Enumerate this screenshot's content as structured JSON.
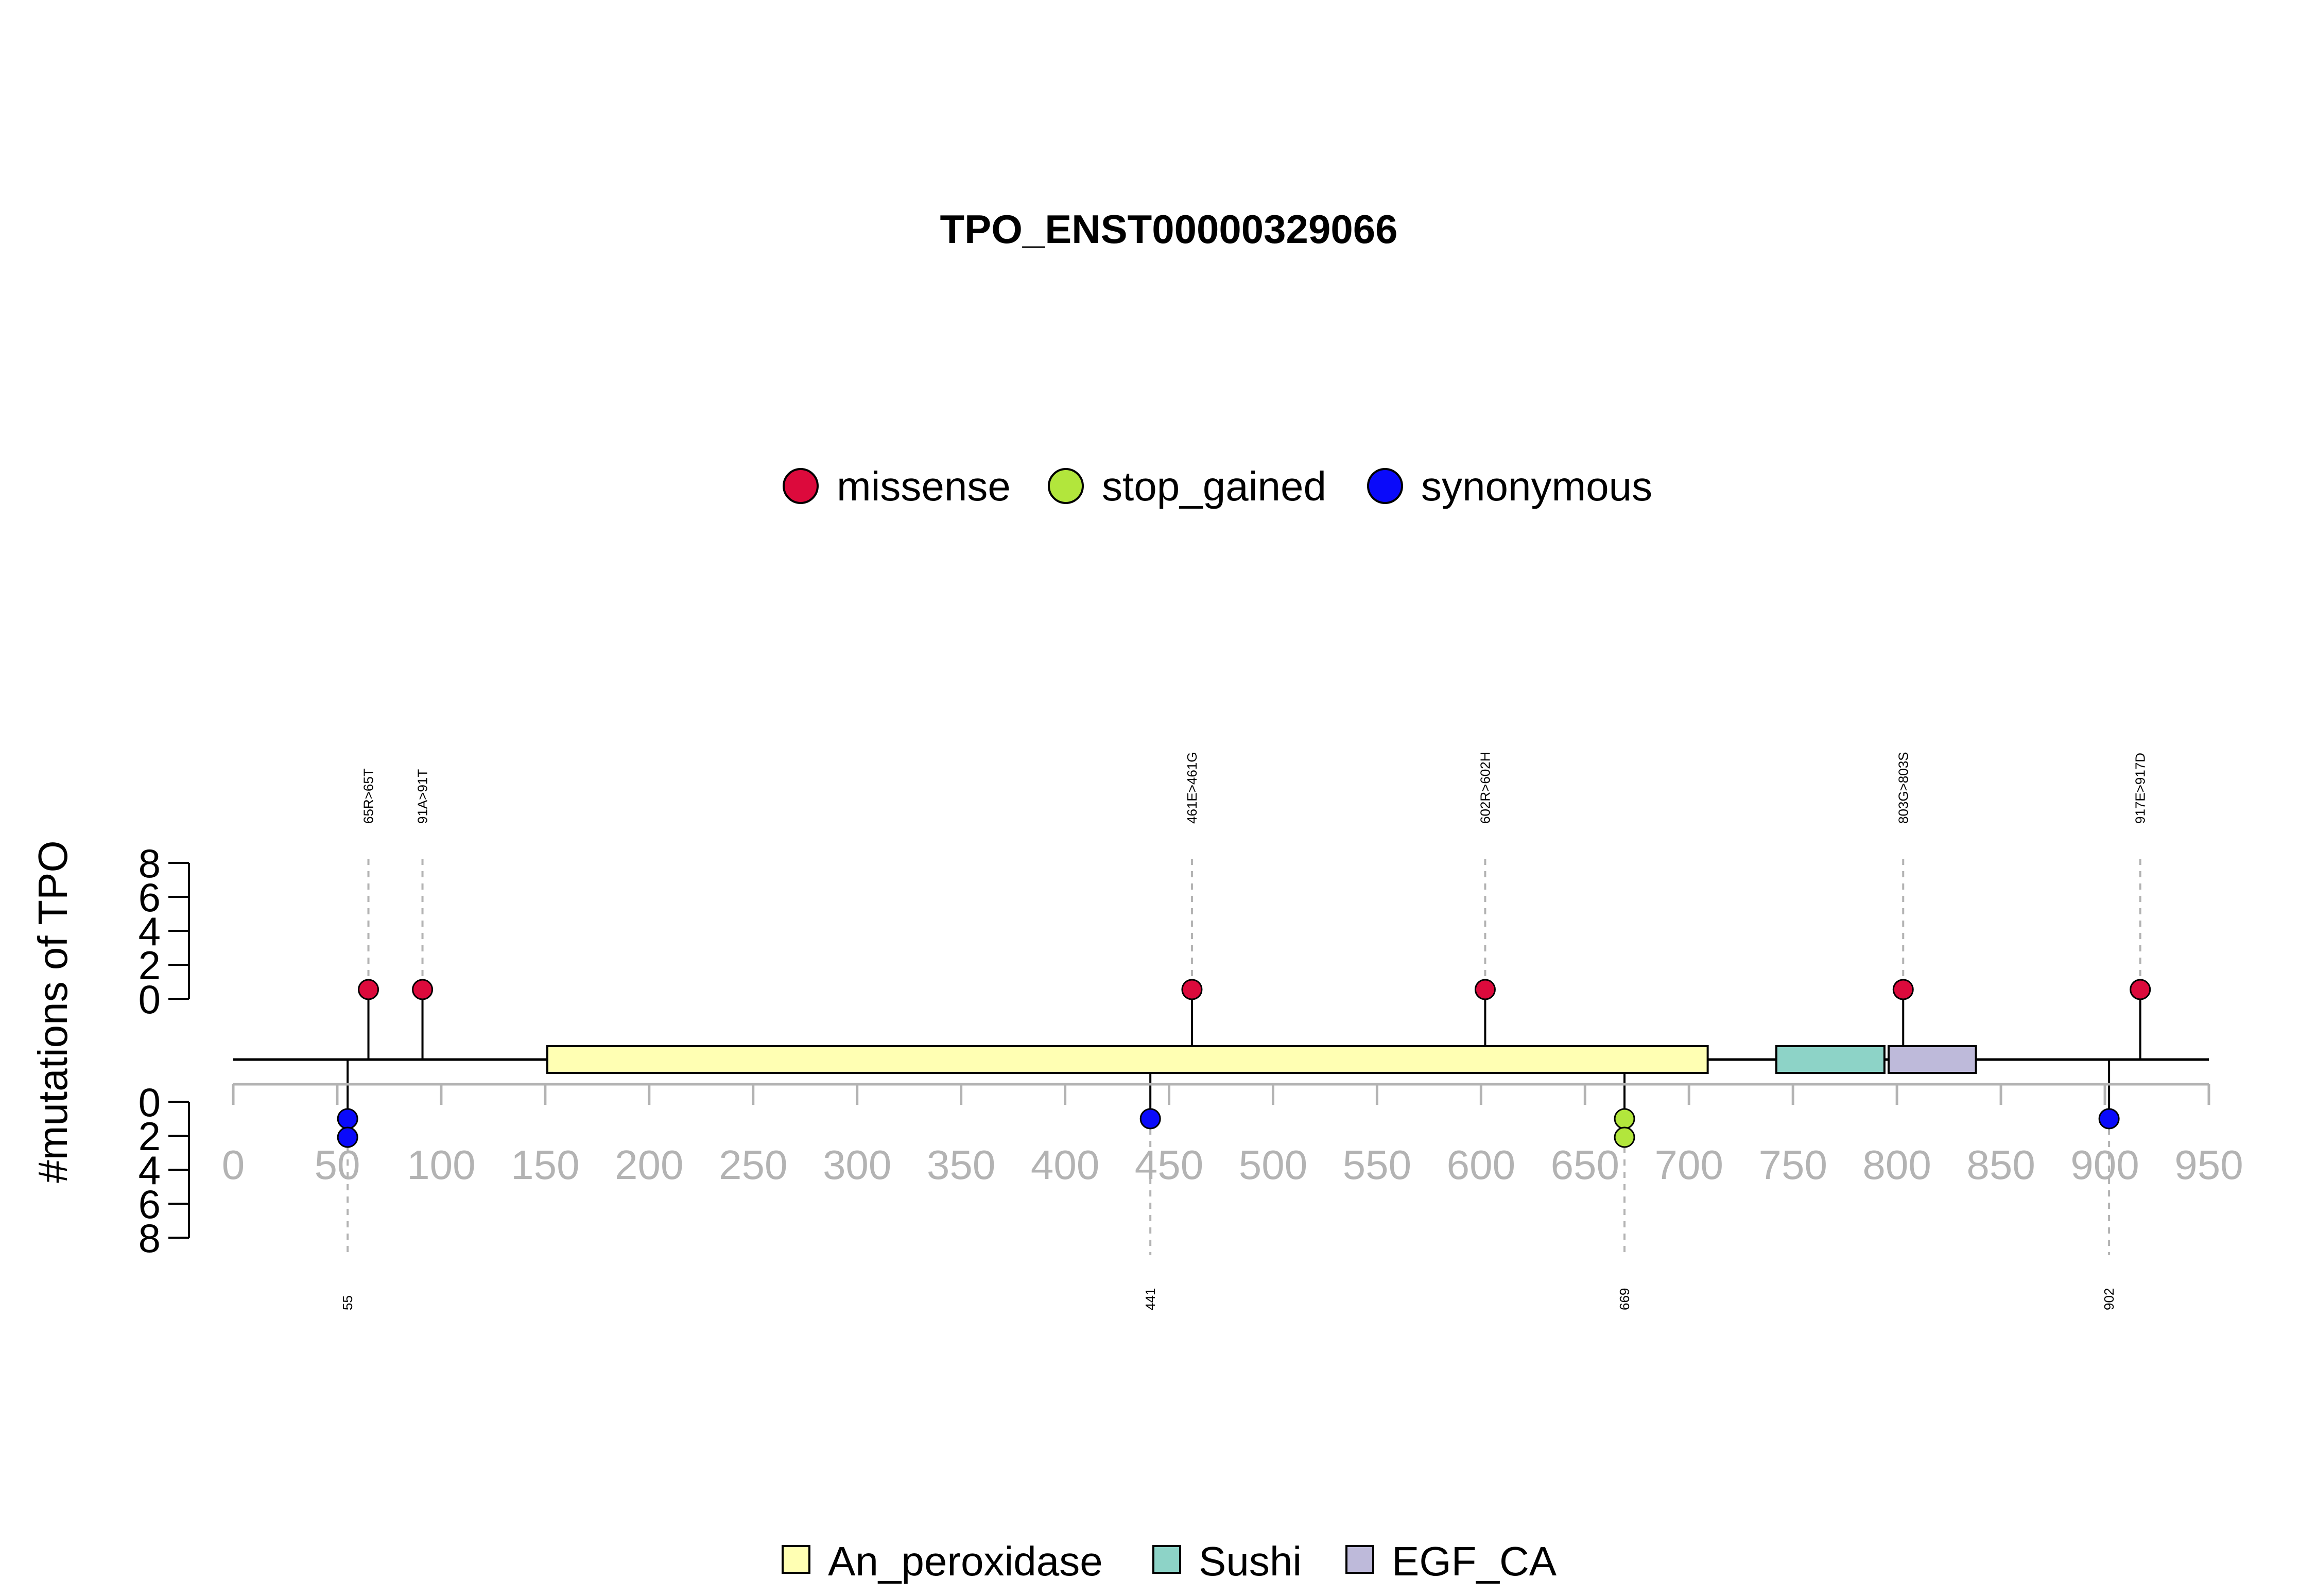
{
  "chart_data": {
    "type": "lollipop",
    "title": "TPO_ENST00000329066",
    "ylabel": "#mutations of TPO",
    "xlim": [
      0,
      950
    ],
    "x_ticks": [
      0,
      50,
      100,
      150,
      200,
      250,
      300,
      350,
      400,
      450,
      500,
      550,
      600,
      650,
      700,
      750,
      800,
      850,
      900,
      950
    ],
    "y_ticks": [
      0,
      2,
      4,
      6,
      8
    ],
    "mutation_legend": [
      {
        "name": "missense",
        "color": "#dc0a3c"
      },
      {
        "name": "stop_gained",
        "color": "#b2e63c"
      },
      {
        "name": "synonymous",
        "color": "#0a0afa"
      }
    ],
    "domain_legend": [
      {
        "name": "An_peroxidase",
        "color": "#ffffb3"
      },
      {
        "name": "Sushi",
        "color": "#8dd3c7"
      },
      {
        "name": "EGF_CA",
        "color": "#bebada"
      }
    ],
    "domains": [
      {
        "name": "An_peroxidase",
        "start": 151,
        "end": 709
      },
      {
        "name": "Sushi",
        "start": 742,
        "end": 794
      },
      {
        "name": "EGF_CA",
        "start": 796,
        "end": 838
      }
    ],
    "upper_mutations": [
      {
        "position": 65,
        "label": "65R>65T",
        "count": 1,
        "type": "missense"
      },
      {
        "position": 91,
        "label": "91A>91T",
        "count": 1,
        "type": "missense"
      },
      {
        "position": 461,
        "label": "461E>461G",
        "count": 1,
        "type": "missense"
      },
      {
        "position": 602,
        "label": "602R>602H",
        "count": 1,
        "type": "missense"
      },
      {
        "position": 803,
        "label": "803G>803S",
        "count": 1,
        "type": "missense"
      },
      {
        "position": 917,
        "label": "917E>917D",
        "count": 1,
        "type": "missense"
      }
    ],
    "lower_mutations": [
      {
        "position": 55,
        "label": "55",
        "count": 2,
        "type": "synonymous"
      },
      {
        "position": 441,
        "label": "441",
        "count": 1,
        "type": "synonymous"
      },
      {
        "position": 669,
        "label": "669",
        "count": 2,
        "type": "stop_gained"
      },
      {
        "position": 902,
        "label": "902",
        "count": 1,
        "type": "synonymous"
      }
    ]
  }
}
